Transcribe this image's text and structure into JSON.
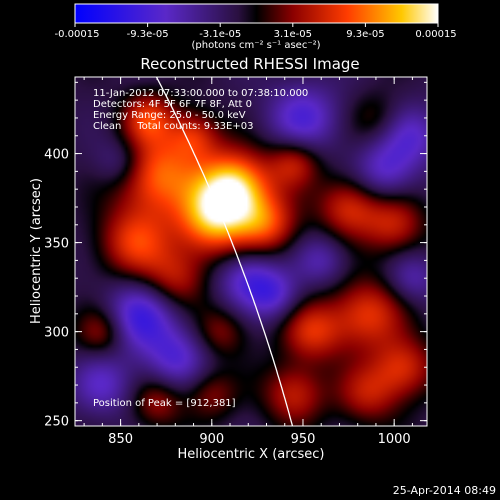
{
  "colorbar": {
    "ticks": [
      "-0.00015",
      "-9.3e-05",
      "-3.1e-05",
      "3.1e-05",
      "9.3e-05",
      "0.00015"
    ],
    "unit_label": "(photons cm⁻² s⁻¹ asec⁻²)"
  },
  "chart_data": {
    "type": "heatmap",
    "title": "Reconstructed RHESSI Image",
    "xlabel": "Heliocentric X (arcsec)",
    "ylabel": "Heliocentric Y (arcsec)",
    "xlim": [
      825,
      1018
    ],
    "ylim": [
      247,
      443
    ],
    "xticks": [
      "850",
      "900",
      "950",
      "1000"
    ],
    "yticks": [
      "250",
      "300",
      "350",
      "400"
    ],
    "xtick_values": [
      850,
      900,
      950,
      1000
    ],
    "ytick_values": [
      250,
      300,
      350,
      400
    ],
    "value_range": [
      -0.00015,
      0.00015
    ],
    "peak": [
      912,
      381
    ],
    "sources": [
      [
        912,
        381,
        1.0,
        14
      ],
      [
        900,
        362,
        0.75,
        14
      ],
      [
        870,
        388,
        0.7,
        16
      ],
      [
        858,
        350,
        0.55,
        14
      ],
      [
        930,
        360,
        0.55,
        12
      ],
      [
        880,
        330,
        0.4,
        12
      ],
      [
        945,
        395,
        0.45,
        10
      ],
      [
        975,
        370,
        0.5,
        12
      ],
      [
        1000,
        360,
        0.45,
        12
      ],
      [
        985,
        310,
        0.55,
        14
      ],
      [
        955,
        300,
        0.5,
        12
      ],
      [
        1005,
        280,
        0.5,
        12
      ],
      [
        945,
        265,
        0.45,
        12
      ],
      [
        985,
        265,
        0.4,
        12
      ],
      [
        870,
        260,
        0.35,
        10
      ],
      [
        905,
        300,
        0.3,
        10
      ],
      [
        840,
        300,
        0.4,
        10
      ],
      [
        890,
        410,
        0.45,
        10
      ],
      [
        865,
        420,
        0.5,
        10
      ],
      [
        990,
        420,
        0.2,
        10
      ],
      [
        900,
        265,
        0.3,
        10
      ],
      [
        860,
        308,
        -0.55,
        14
      ],
      [
        920,
        330,
        -0.45,
        12
      ],
      [
        950,
        420,
        -0.45,
        14
      ],
      [
        995,
        390,
        -0.4,
        12
      ],
      [
        935,
        320,
        -0.35,
        10
      ],
      [
        880,
        285,
        -0.4,
        12
      ],
      [
        1010,
        330,
        -0.3,
        10
      ],
      [
        840,
        270,
        -0.35,
        12
      ],
      [
        1010,
        410,
        -0.35,
        12
      ],
      [
        960,
        340,
        -0.3,
        10
      ],
      [
        850,
        395,
        -0.3,
        10
      ]
    ],
    "limb_label": "solar limb",
    "limb": {
      "center": [
        0,
        0
      ],
      "radius_arcsec": 976
    }
  },
  "info": {
    "line1": "11-Jan-2012 07:33:00.000 to 07:38:10.000",
    "line2": "Detectors: 4F 5F 6F 7F 8F, Att 0",
    "line3": "Energy Range: 25.0 - 50.0 keV",
    "line4": "Clean     Total counts: 9.33E+03",
    "peak": "Position of Peak = [912,381]"
  },
  "timestamp": "25-Apr-2014 08:49"
}
